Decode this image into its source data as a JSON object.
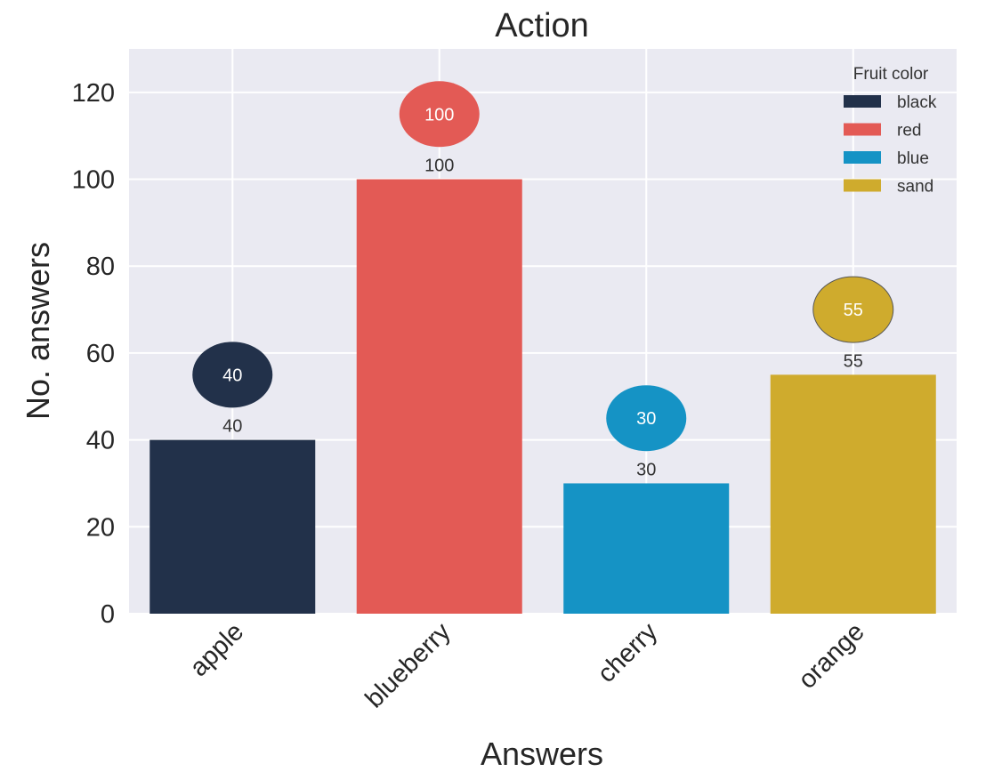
{
  "chart_data": {
    "type": "bar",
    "title": "Action",
    "xlabel": "Answers",
    "ylabel": "No. answers",
    "categories": [
      "apple",
      "blueberry",
      "cherry",
      "orange"
    ],
    "values": [
      40,
      100,
      30,
      55
    ],
    "bar_labels": [
      "40",
      "100",
      "30",
      "55"
    ],
    "ylim": [
      0,
      130
    ],
    "yticks": [
      0,
      20,
      40,
      60,
      80,
      100,
      120
    ],
    "ytick_labels": [
      "0",
      "20",
      "40",
      "60",
      "80",
      "100",
      "120"
    ],
    "grid": true,
    "background_color": "#eaeaf2",
    "colors": [
      "#22314a",
      "#e35a55",
      "#1593c5",
      "#cfab2d"
    ],
    "annotations": [
      {
        "x": "apple",
        "y": 55,
        "text": "40"
      },
      {
        "x": "blueberry",
        "y": 115,
        "text": "100"
      },
      {
        "x": "cherry",
        "y": 45,
        "text": "30"
      },
      {
        "x": "orange",
        "y": 70,
        "text": "55"
      }
    ],
    "legend": {
      "title": "Fruit color",
      "placement": "top-right",
      "entries": [
        {
          "label": "black",
          "color": "#22314a"
        },
        {
          "label": "red",
          "color": "#e35a55"
        },
        {
          "label": "blue",
          "color": "#1593c5"
        },
        {
          "label": "sand",
          "color": "#cfab2d"
        }
      ]
    }
  }
}
